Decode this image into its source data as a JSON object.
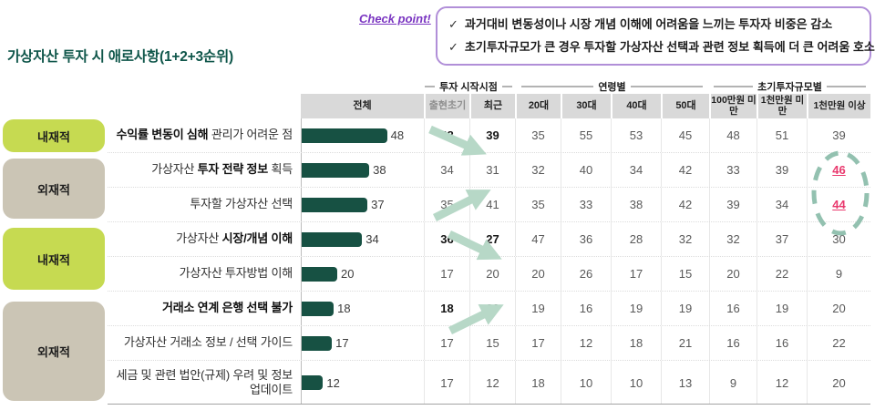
{
  "header": {
    "title": "가상자산 투자 시 애로사항(1+2+3순위)",
    "checkpoint_label": "Check point!",
    "check_glyph": "✓",
    "checkpoint_items": [
      "과거대비 변동성이나 시장 개념 이해에 어려움을 느끼는 투자자 비중은 감소",
      "초기투자규모가 큰 경우 투자할 가상자산 선택과 관련 정보 획득에 더 큰 어려움 호소"
    ]
  },
  "colors": {
    "title_green": "#0f564a",
    "bar_green": "#175143",
    "chip_green": "#c6da51",
    "chip_tan": "#cbc5b5",
    "accent_purple": "#7a35c1",
    "box_border_purple": "#b18fd8",
    "arrow_mint": "#b7d8c7",
    "circle_mint": "#93c1b0",
    "highlight_red": "#e9386d",
    "header_bg": "#d9d9d9"
  },
  "chart_data": {
    "type": "table",
    "title": "가상자산 투자 시 애로사항(1+2+3순위)",
    "bar_column": "전체",
    "group_headers": [
      "투자 시작시점",
      "연령별",
      "초기투자규모별"
    ],
    "columns": [
      "전체",
      "출현초기",
      "최근",
      "20대",
      "30대",
      "40대",
      "50대",
      "100만원 미만",
      "1천만원 미만",
      "1천만원 이상"
    ],
    "side_categories": [
      {
        "label": "내재적",
        "tone": "green",
        "rows": [
          0
        ]
      },
      {
        "label": "외재적",
        "tone": "tan",
        "rows": [
          1,
          2
        ]
      },
      {
        "label": "내재적",
        "tone": "green",
        "rows": [
          3,
          4
        ]
      },
      {
        "label": "외재적",
        "tone": "tan",
        "rows": [
          5,
          6,
          7
        ]
      }
    ],
    "rows": [
      {
        "label_pre": "",
        "label_bold": "수익률 변동이 심해",
        "label_post": " 관리가 어려운 점",
        "total": 48,
        "values": [
          48,
          39,
          35,
          55,
          53,
          45,
          48,
          51,
          39
        ],
        "emphasized": true
      },
      {
        "label_pre": "가상자산 ",
        "label_bold": "투자 전략 정보",
        "label_post": " 획득",
        "total": 38,
        "values": [
          34,
          31,
          32,
          40,
          34,
          42,
          33,
          39,
          46
        ],
        "emphasized": false
      },
      {
        "label_pre": "투자할 가상자산 선택",
        "label_bold": "",
        "label_post": "",
        "total": 37,
        "values": [
          35,
          41,
          35,
          33,
          38,
          42,
          39,
          34,
          44
        ],
        "emphasized": false
      },
      {
        "label_pre": "가상자산 ",
        "label_bold": "시장/개념 이해",
        "label_post": "",
        "total": 34,
        "values": [
          36,
          27,
          47,
          36,
          28,
          32,
          32,
          37,
          30
        ],
        "emphasized": true
      },
      {
        "label_pre": "가상자산 투자방법 이해",
        "label_bold": "",
        "label_post": "",
        "total": 20,
        "values": [
          17,
          20,
          20,
          26,
          17,
          15,
          20,
          22,
          9
        ],
        "emphasized": false
      },
      {
        "label_pre": "",
        "label_bold": "거래소 연계 은행 선택 불가",
        "label_post": "",
        "total": 18,
        "values": [
          18,
          20,
          19,
          16,
          19,
          19,
          16,
          19,
          20
        ],
        "emphasized": true
      },
      {
        "label_pre": "가상자산 거래소 정보 / 선택 가이드",
        "label_bold": "",
        "label_post": "",
        "total": 17,
        "values": [
          17,
          15,
          17,
          12,
          18,
          21,
          16,
          16,
          22
        ],
        "emphasized": false
      },
      {
        "label_pre": "세금 및 관련 법안(규제) 우려 및 정보 업데이트",
        "label_bold": "",
        "label_post": "",
        "total": 12,
        "values": [
          17,
          12,
          18,
          10,
          10,
          13,
          9,
          12,
          20
        ],
        "emphasized": false
      }
    ],
    "annotations": {
      "arrows": [
        {
          "row_index": 0,
          "from_col": "출현초기",
          "to_col": "최근",
          "direction": "down"
        },
        {
          "row_index": 2,
          "from_col": "출현초기",
          "to_col": "최근",
          "direction": "up"
        },
        {
          "row_index": 3,
          "from_col": "출현초기",
          "to_col": "최근",
          "direction": "down"
        },
        {
          "row_index": 5,
          "from_col": "출현초기",
          "to_col": "최근",
          "direction": "up"
        }
      ],
      "circled_values": {
        "column": "1천만원 이상",
        "row_indexes": [
          1,
          2
        ],
        "values": [
          46,
          44
        ],
        "value_color": "#e9386d"
      }
    }
  }
}
